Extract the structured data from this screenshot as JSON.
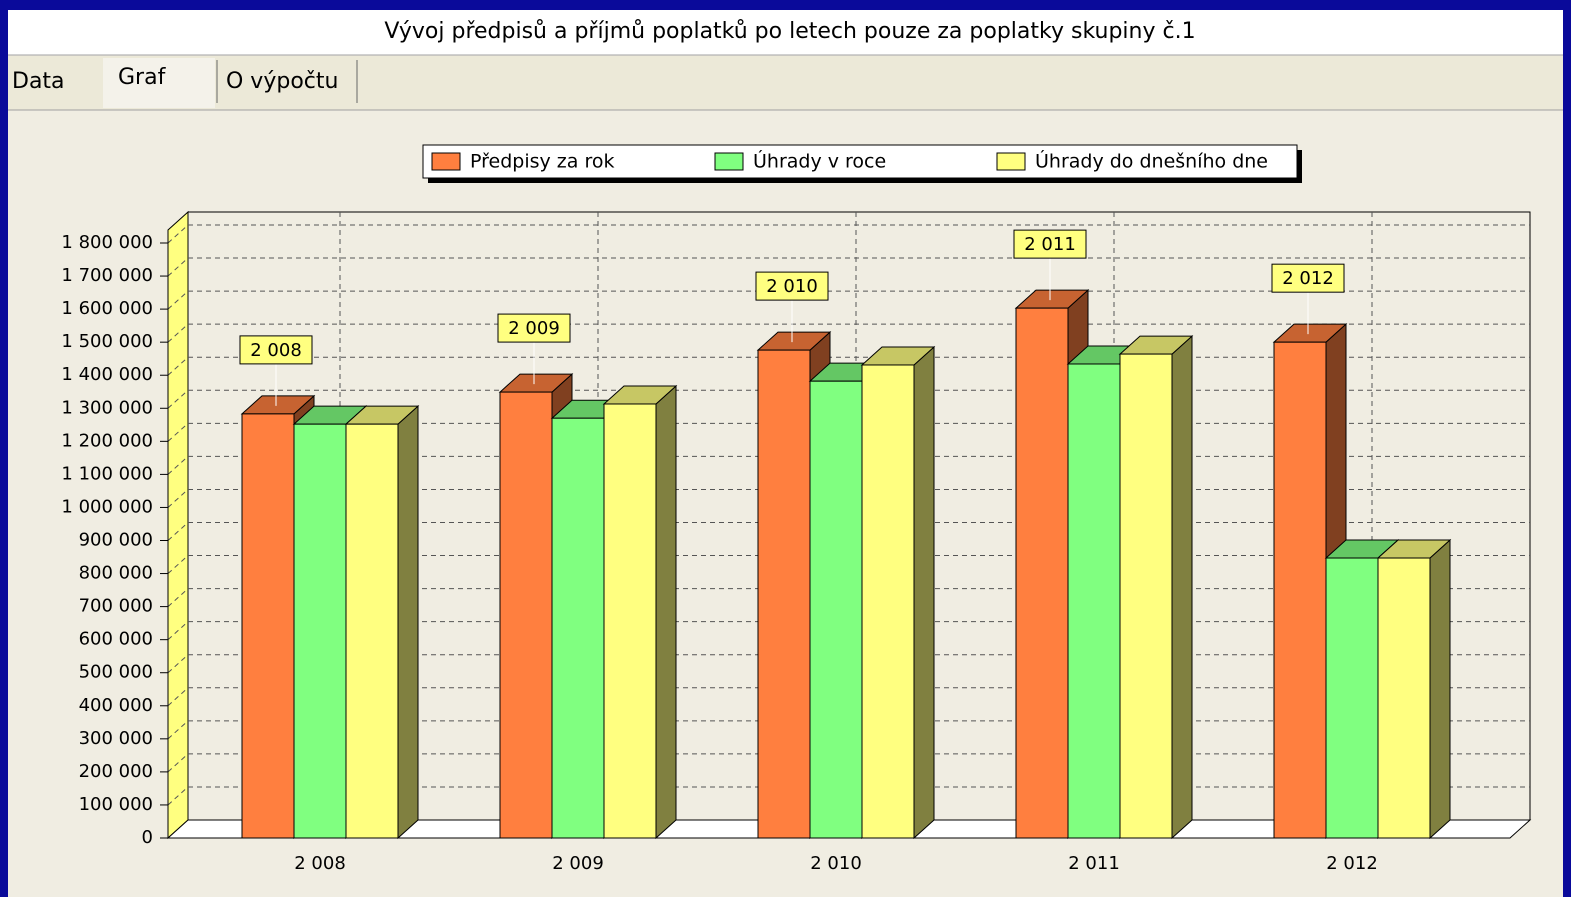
{
  "window": {
    "title": "Vývoj předpisů a příjmů poplatků po letech pouze za poplatky skupiny č.1",
    "tabs": [
      "Data",
      "Graf",
      "O výpočtu"
    ]
  },
  "chart_data": {
    "type": "bar",
    "categories": [
      "2 008",
      "2 009",
      "2 010",
      "2 011",
      "2 012"
    ],
    "annotations": [
      "2 008",
      "2 009",
      "2 010",
      "2 011",
      "2 012"
    ],
    "series": [
      {
        "name": "Předpisy za rok",
        "color": "#ff7f3f",
        "values": [
          1283000,
          1349000,
          1476000,
          1603000,
          1500000
        ]
      },
      {
        "name": "Úhrady v roce",
        "color": "#80ff80",
        "values": [
          1252000,
          1270000,
          1382000,
          1434000,
          847000
        ]
      },
      {
        "name": "Úhrady do dnešního dne",
        "color": "#ffff80",
        "values": [
          1252000,
          1313000,
          1431000,
          1464000,
          847000
        ]
      }
    ],
    "ylim": [
      0,
      1800000
    ],
    "yticks": [
      0,
      {
        "value": 100000,
        "label": "100 000"
      },
      {
        "value": 200000,
        "label": "200 000"
      },
      {
        "value": 300000,
        "label": "300 000"
      },
      {
        "value": 400000,
        "label": "400 000"
      },
      {
        "value": 500000,
        "label": "500 000"
      },
      {
        "value": 600000,
        "label": "600 000"
      },
      {
        "value": 700000,
        "label": "700 000"
      },
      {
        "value": 800000,
        "label": "800 000"
      },
      {
        "value": 900000,
        "label": "900 000"
      },
      {
        "value": 1000000,
        "label": "1 000 000"
      },
      {
        "value": 1100000,
        "label": "1 100 000"
      },
      {
        "value": 1200000,
        "label": "1 200 000"
      },
      {
        "value": 1300000,
        "label": "1 300 000"
      },
      {
        "value": 1400000,
        "label": "1 400 000"
      },
      {
        "value": 1500000,
        "label": "1 500 000"
      },
      {
        "value": 1600000,
        "label": "1 600 000"
      },
      {
        "value": 1700000,
        "label": "1 700 000"
      },
      {
        "value": 1800000,
        "label": "1 800 000"
      }
    ],
    "grid": true,
    "legend": "top"
  }
}
